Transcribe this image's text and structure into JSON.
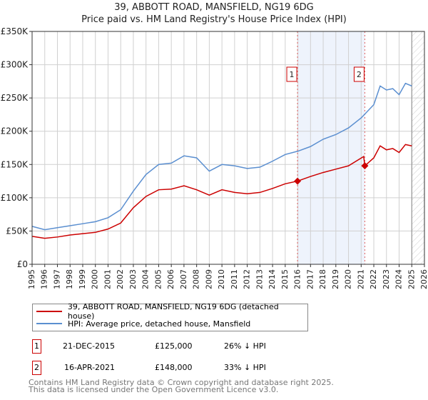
{
  "chart_data": {
    "type": "line",
    "title": "39, ABBOTT ROAD, MANSFIELD, NG19 6DG",
    "subtitle": "Price paid vs. HM Land Registry's House Price Index (HPI)",
    "xlim": [
      1995,
      2026
    ],
    "ylim": [
      0,
      350000
    ],
    "xticks": [
      "1995",
      "1996",
      "1997",
      "1998",
      "1999",
      "2000",
      "2001",
      "2002",
      "2003",
      "2004",
      "2005",
      "2006",
      "2007",
      "2008",
      "2009",
      "2010",
      "2011",
      "2012",
      "2013",
      "2014",
      "2015",
      "2016",
      "2017",
      "2018",
      "2019",
      "2020",
      "2021",
      "2022",
      "2023",
      "2024",
      "2025",
      "2026"
    ],
    "yticks": [
      {
        "v": 0,
        "label": "£0"
      },
      {
        "v": 50000,
        "label": "£50K"
      },
      {
        "v": 100000,
        "label": "£100K"
      },
      {
        "v": 150000,
        "label": "£150K"
      },
      {
        "v": 200000,
        "label": "£200K"
      },
      {
        "v": 250000,
        "label": "£250K"
      },
      {
        "v": 300000,
        "label": "£300K"
      },
      {
        "v": 350000,
        "label": "£350K"
      }
    ],
    "grid": true,
    "series": [
      {
        "name": "39, ABBOTT ROAD, MANSFIELD, NG19 6DG (detached house)",
        "color": "#cc0000",
        "x": [
          1995,
          1996,
          1997,
          1998,
          1999,
          2000,
          2001,
          2002,
          2003,
          2004,
          2005,
          2006,
          2007,
          2008,
          2009,
          2010,
          2011,
          2012,
          2013,
          2014,
          2015,
          2015.97,
          2017,
          2018,
          2019,
          2020,
          2021.2,
          2021.29,
          2022,
          2022.5,
          2023,
          2023.5,
          2024,
          2024.5,
          2025
        ],
        "y": [
          42000,
          39000,
          41000,
          44000,
          46000,
          48000,
          53000,
          62000,
          85000,
          102000,
          112000,
          113000,
          118000,
          112000,
          104000,
          112000,
          108000,
          106000,
          108000,
          114000,
          121000,
          125000,
          132000,
          138000,
          143000,
          148000,
          162000,
          148000,
          160000,
          178000,
          172000,
          174000,
          168000,
          180000,
          178000
        ]
      },
      {
        "name": "HPI: Average price, detached house, Mansfield",
        "color": "#5b8fd0",
        "x": [
          1995,
          1996,
          1997,
          1998,
          1999,
          2000,
          2001,
          2002,
          2003,
          2004,
          2005,
          2006,
          2007,
          2008,
          2009,
          2010,
          2011,
          2012,
          2013,
          2014,
          2015,
          2016,
          2017,
          2018,
          2019,
          2020,
          2021,
          2022,
          2022.5,
          2023,
          2023.5,
          2024,
          2024.5,
          2025
        ],
        "y": [
          57000,
          52000,
          55000,
          58000,
          61000,
          64000,
          70000,
          82000,
          110000,
          135000,
          150000,
          152000,
          163000,
          160000,
          140000,
          150000,
          148000,
          144000,
          146000,
          155000,
          165000,
          170000,
          177000,
          188000,
          195000,
          205000,
          220000,
          240000,
          268000,
          262000,
          264000,
          255000,
          272000,
          268000
        ]
      }
    ],
    "sales": [
      {
        "label": "1",
        "x": 2015.97,
        "y": 125000,
        "date": "21-DEC-2015",
        "price": "£125,000",
        "hpi": "26% ↓ HPI"
      },
      {
        "label": "2",
        "x": 2021.29,
        "y": 148000,
        "date": "16-APR-2021",
        "price": "£148,000",
        "hpi": "33% ↓ HPI"
      }
    ],
    "shaded_range": [
      2015.97,
      2021.29
    ],
    "forecast_hatch_from": 2025,
    "legend_placement": "below"
  },
  "footer": {
    "line1": "Contains HM Land Registry data © Crown copyright and database right 2025.",
    "line2": "This data is licensed under the Open Government Licence v3.0."
  }
}
